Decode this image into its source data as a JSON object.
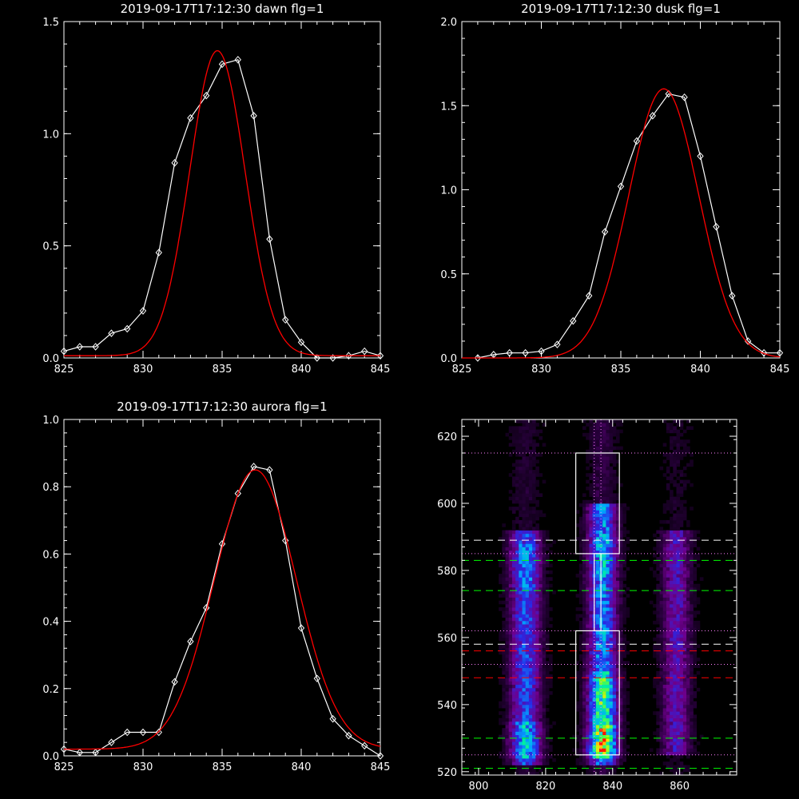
{
  "chart_data": [
    {
      "type": "line",
      "title": "2019-09-17T17:12:30 dawn flg=1",
      "xlim": [
        825,
        845
      ],
      "ylim": [
        0,
        1.5
      ],
      "xticks": [
        "825",
        "830",
        "835",
        "840",
        "845"
      ],
      "yticks": [
        "0.0",
        "0.5",
        "1.0",
        "1.5"
      ],
      "series": [
        {
          "color": "#ffffff",
          "marker": "diamond",
          "x": [
            825,
            826,
            827,
            828,
            829,
            830,
            831,
            832,
            833,
            834,
            835,
            836,
            837,
            838,
            839,
            840,
            841,
            842,
            843,
            844,
            845
          ],
          "y": [
            0.03,
            0.05,
            0.05,
            0.11,
            0.13,
            0.21,
            0.47,
            0.87,
            1.07,
            1.17,
            1.31,
            1.33,
            1.08,
            0.53,
            0.17,
            0.07,
            0.0,
            0.0,
            0.01,
            0.03,
            0.01
          ]
        },
        {
          "color": "#ff0000",
          "kind": "gaussian",
          "x0": 834.7,
          "sigma": 1.75,
          "amp": 1.36,
          "base": 0.01
        }
      ]
    },
    {
      "type": "line",
      "title": "2019-09-17T17:12:30 dusk flg=1",
      "xlim": [
        825,
        845
      ],
      "ylim": [
        0,
        2.0
      ],
      "xticks": [
        "825",
        "830",
        "835",
        "840",
        "845"
      ],
      "yticks": [
        "0.0",
        "0.5",
        "1.0",
        "1.5",
        "2.0"
      ],
      "series": [
        {
          "color": "#ffffff",
          "marker": "diamond",
          "x": [
            826,
            827,
            828,
            829,
            830,
            831,
            832,
            833,
            834,
            835,
            836,
            837,
            838,
            839,
            840,
            841,
            842,
            843,
            844,
            845
          ],
          "y": [
            0.0,
            0.02,
            0.03,
            0.03,
            0.04,
            0.08,
            0.22,
            0.37,
            0.75,
            1.02,
            1.29,
            1.44,
            1.57,
            1.55,
            1.2,
            0.78,
            0.37,
            0.1,
            0.03,
            0.03
          ]
        },
        {
          "color": "#ff0000",
          "kind": "gaussian",
          "x0": 837.7,
          "sigma": 2.2,
          "amp": 1.6,
          "base": 0.0
        }
      ]
    },
    {
      "type": "line",
      "title": "2019-09-17T17:12:30 aurora flg=1",
      "xlim": [
        825,
        845
      ],
      "ylim": [
        0,
        1.0
      ],
      "xticks": [
        "825",
        "830",
        "835",
        "840",
        "845"
      ],
      "yticks": [
        "0.0",
        "0.2",
        "0.4",
        "0.6",
        "0.8",
        "1.0"
      ],
      "series": [
        {
          "color": "#ffffff",
          "marker": "diamond",
          "x": [
            825,
            826,
            827,
            828,
            829,
            830,
            831,
            832,
            833,
            834,
            835,
            836,
            837,
            838,
            839,
            840,
            841,
            842,
            843,
            844,
            845
          ],
          "y": [
            0.02,
            0.01,
            0.01,
            0.04,
            0.07,
            0.07,
            0.07,
            0.22,
            0.34,
            0.44,
            0.63,
            0.78,
            0.86,
            0.85,
            0.64,
            0.38,
            0.23,
            0.11,
            0.06,
            0.03,
            0.0
          ]
        },
        {
          "color": "#ff0000",
          "kind": "gaussian",
          "x0": 837.1,
          "sigma": 2.6,
          "amp": 0.83,
          "base": 0.02
        }
      ]
    },
    {
      "type": "heatmap",
      "xlim": [
        795,
        877
      ],
      "ylim": [
        519,
        625
      ],
      "xticks": [
        "800",
        "820",
        "840",
        "860"
      ],
      "yticks": [
        "520",
        "540",
        "560",
        "580",
        "600",
        "620"
      ],
      "columns": [
        {
          "x0": 814,
          "width": 3.2
        },
        {
          "x0": 837,
          "width": 3.0
        },
        {
          "x0": 859,
          "width": 3.0
        }
      ],
      "boxes": [
        {
          "x": [
            829,
            842
          ],
          "y": [
            585,
            615
          ]
        },
        {
          "x": [
            829,
            842
          ],
          "y": [
            525,
            562
          ]
        },
        {
          "x": [
            834.5,
            836.5
          ],
          "y": [
            562,
            585
          ]
        }
      ],
      "vlines_dotted": [
        834.5,
        836.5
      ],
      "hlines": [
        {
          "y": 615,
          "color": "#ff80ff",
          "style": "dotted"
        },
        {
          "y": 589,
          "color": "#ffffff",
          "style": "dashed"
        },
        {
          "y": 585,
          "color": "#ff80ff",
          "style": "dotted"
        },
        {
          "y": 583,
          "color": "#00ff00",
          "style": "dashed"
        },
        {
          "y": 574,
          "color": "#00ff00",
          "style": "dashed"
        },
        {
          "y": 562,
          "color": "#ff80ff",
          "style": "dotted"
        },
        {
          "y": 558,
          "color": "#ffffff",
          "style": "dashed"
        },
        {
          "y": 556,
          "color": "#ff0000",
          "style": "dashed"
        },
        {
          "y": 552,
          "color": "#ff80ff",
          "style": "dotted"
        },
        {
          "y": 548,
          "color": "#ff0000",
          "style": "dashed"
        },
        {
          "y": 530,
          "color": "#00ff00",
          "style": "dashed"
        },
        {
          "y": 525,
          "color": "#ff80ff",
          "style": "dotted"
        },
        {
          "y": 521,
          "color": "#00ff00",
          "style": "dashed"
        }
      ]
    }
  ]
}
